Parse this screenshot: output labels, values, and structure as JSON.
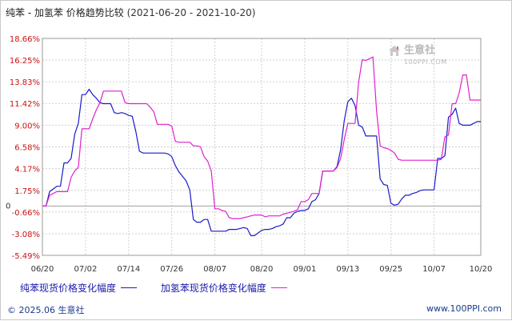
{
  "title": {
    "main": "纯苯 - 加氢苯 价格趋势比较",
    "range": "(2021-06-20 - 2021-10-20)"
  },
  "watermark": {
    "brand": "生意社",
    "site": "100PPI.COM"
  },
  "footer": {
    "copyright": "© 2025.06 生意社",
    "url": "www.100PPI.com"
  },
  "colors": {
    "series1": "#1a1acc",
    "series2": "#e020d0",
    "axis_text": "#cc1111",
    "grid": "#cfcfcf",
    "zero_line": "#a0a0a0"
  },
  "chart_data": {
    "type": "line",
    "title": "纯苯 - 加氢苯 价格趋势比较",
    "xlabel": "",
    "ylabel": "",
    "ylim": [
      -5.49,
      18.66
    ],
    "y_ticks": [
      "18.66%",
      "16.25%",
      "13.83%",
      "11.42%",
      "9.00%",
      "6.58%",
      "4.17%",
      "1.75%",
      "-0.66%",
      "-3.08%",
      "-5.49%"
    ],
    "y_tick_values": [
      18.66,
      16.25,
      13.83,
      11.42,
      9.0,
      6.58,
      4.17,
      1.75,
      -0.66,
      -3.08,
      -5.49
    ],
    "y_zero_label": "0",
    "x_ticks": [
      "06/20",
      "07/02",
      "07/14",
      "07/26",
      "08/07",
      "08/20",
      "09/01",
      "09/13",
      "09/25",
      "10/07",
      "10/20"
    ],
    "x_tick_days": [
      0,
      12,
      24,
      36,
      48,
      61,
      73,
      85,
      97,
      109,
      122
    ],
    "x_range_days": [
      0,
      122
    ],
    "grid": true,
    "legend": "bottom",
    "series": [
      {
        "name": "纯苯现货价格变化幅度",
        "color": "#1a1acc",
        "points": [
          [
            0,
            0
          ],
          [
            1,
            0
          ],
          [
            2,
            1.6
          ],
          [
            3,
            1.9
          ],
          [
            4,
            2.2
          ],
          [
            5,
            2.2
          ],
          [
            6,
            4.8
          ],
          [
            7,
            4.8
          ],
          [
            8,
            5.3
          ],
          [
            9,
            8
          ],
          [
            10,
            9.2
          ],
          [
            11,
            12.4
          ],
          [
            12,
            12.4
          ],
          [
            13,
            13
          ],
          [
            14,
            12.4
          ],
          [
            15,
            12
          ],
          [
            16,
            11.5
          ],
          [
            17,
            11.4
          ],
          [
            18,
            11.4
          ],
          [
            19,
            11.4
          ],
          [
            20,
            10.4
          ],
          [
            21,
            10.3
          ],
          [
            22,
            10.4
          ],
          [
            23,
            10.3
          ],
          [
            24,
            10.1
          ],
          [
            25,
            10
          ],
          [
            26,
            8.3
          ],
          [
            27,
            6.1
          ],
          [
            28,
            5.9
          ],
          [
            29,
            5.9
          ],
          [
            30,
            5.9
          ],
          [
            31,
            5.9
          ],
          [
            32,
            5.9
          ],
          [
            33,
            5.9
          ],
          [
            34,
            5.9
          ],
          [
            35,
            5.8
          ],
          [
            36,
            5.5
          ],
          [
            37,
            4.5
          ],
          [
            38,
            3.8
          ],
          [
            39,
            3.3
          ],
          [
            40,
            2.8
          ],
          [
            41,
            1.8
          ],
          [
            42,
            -1.5
          ],
          [
            43,
            -1.8
          ],
          [
            44,
            -1.8
          ],
          [
            45,
            -1.5
          ],
          [
            46,
            -1.5
          ],
          [
            47,
            -2.8
          ],
          [
            48,
            -2.8
          ],
          [
            49,
            -2.8
          ],
          [
            50,
            -2.8
          ],
          [
            51,
            -2.8
          ],
          [
            52,
            -2.6
          ],
          [
            53,
            -2.6
          ],
          [
            54,
            -2.6
          ],
          [
            55,
            -2.5
          ],
          [
            56,
            -2.4
          ],
          [
            57,
            -2.5
          ],
          [
            58,
            -3.3
          ],
          [
            59,
            -3.3
          ],
          [
            60,
            -3
          ],
          [
            61,
            -2.7
          ],
          [
            62,
            -2.6
          ],
          [
            63,
            -2.6
          ],
          [
            64,
            -2.5
          ],
          [
            65,
            -2.3
          ],
          [
            66,
            -2.2
          ],
          [
            67,
            -2
          ],
          [
            68,
            -1.3
          ],
          [
            69,
            -1.3
          ],
          [
            70,
            -0.8
          ],
          [
            71,
            -0.6
          ],
          [
            72,
            -0.5
          ],
          [
            73,
            -0.5
          ],
          [
            74,
            -0.3
          ],
          [
            75,
            0.5
          ],
          [
            76,
            0.7
          ],
          [
            77,
            1.4
          ],
          [
            78,
            3.9
          ],
          [
            79,
            3.9
          ],
          [
            80,
            3.9
          ],
          [
            81,
            3.9
          ],
          [
            82,
            4.4
          ],
          [
            83,
            6.3
          ],
          [
            84,
            9.5
          ],
          [
            85,
            11.6
          ],
          [
            86,
            12
          ],
          [
            87,
            11.2
          ],
          [
            88,
            9
          ],
          [
            89,
            8.8
          ],
          [
            90,
            7.8
          ],
          [
            91,
            7.8
          ],
          [
            92,
            7.8
          ],
          [
            93,
            7.8
          ],
          [
            94,
            3
          ],
          [
            95,
            2.4
          ],
          [
            96,
            2.3
          ],
          [
            97,
            0.3
          ],
          [
            98,
            0.1
          ],
          [
            99,
            0.2
          ],
          [
            100,
            0.8
          ],
          [
            101,
            1.2
          ],
          [
            102,
            1.2
          ],
          [
            103,
            1.4
          ],
          [
            104,
            1.5
          ],
          [
            105,
            1.7
          ],
          [
            106,
            1.8
          ],
          [
            107,
            1.8
          ],
          [
            108,
            1.8
          ],
          [
            109,
            1.8
          ],
          [
            110,
            5.3
          ],
          [
            111,
            5.3
          ],
          [
            112,
            5.6
          ],
          [
            113,
            9.9
          ],
          [
            114,
            10.2
          ],
          [
            115,
            10.9
          ],
          [
            116,
            9.2
          ],
          [
            117,
            9
          ],
          [
            118,
            9
          ],
          [
            119,
            9
          ],
          [
            120,
            9.2
          ],
          [
            121,
            9.4
          ],
          [
            122,
            9.4
          ]
        ]
      },
      {
        "name": "加氢苯现货价格变化幅度",
        "color": "#e020d0",
        "points": [
          [
            0,
            0
          ],
          [
            1,
            0
          ],
          [
            2,
            1.2
          ],
          [
            3,
            1.4
          ],
          [
            4,
            1.6
          ],
          [
            5,
            1.6
          ],
          [
            6,
            1.6
          ],
          [
            7,
            1.6
          ],
          [
            8,
            3.2
          ],
          [
            9,
            3.9
          ],
          [
            10,
            4.3
          ],
          [
            11,
            8.6
          ],
          [
            12,
            8.6
          ],
          [
            13,
            8.6
          ],
          [
            14,
            9.7
          ],
          [
            15,
            10.7
          ],
          [
            16,
            11.5
          ],
          [
            17,
            12.8
          ],
          [
            18,
            12.8
          ],
          [
            19,
            12.8
          ],
          [
            20,
            12.8
          ],
          [
            21,
            12.8
          ],
          [
            22,
            12.8
          ],
          [
            23,
            11.5
          ],
          [
            24,
            11.4
          ],
          [
            25,
            11.4
          ],
          [
            26,
            11.4
          ],
          [
            27,
            11.4
          ],
          [
            28,
            11.4
          ],
          [
            29,
            11.4
          ],
          [
            30,
            11
          ],
          [
            31,
            10.5
          ],
          [
            32,
            9.1
          ],
          [
            33,
            9.1
          ],
          [
            34,
            9.1
          ],
          [
            35,
            9.1
          ],
          [
            36,
            8.9
          ],
          [
            37,
            7.2
          ],
          [
            38,
            7.1
          ],
          [
            39,
            7.1
          ],
          [
            40,
            7.1
          ],
          [
            41,
            7.1
          ],
          [
            42,
            6.7
          ],
          [
            43,
            6.7
          ],
          [
            44,
            6.6
          ],
          [
            45,
            5.5
          ],
          [
            46,
            5
          ],
          [
            47,
            3.9
          ],
          [
            48,
            -0.3
          ],
          [
            49,
            -0.3
          ],
          [
            50,
            -0.5
          ],
          [
            51,
            -0.6
          ],
          [
            52,
            -1.3
          ],
          [
            53,
            -1.4
          ],
          [
            54,
            -1.4
          ],
          [
            55,
            -1.4
          ],
          [
            56,
            -1.3
          ],
          [
            57,
            -1.2
          ],
          [
            58,
            -1.1
          ],
          [
            59,
            -1
          ],
          [
            60,
            -1
          ],
          [
            61,
            -1
          ],
          [
            62,
            -1.2
          ],
          [
            63,
            -1.1
          ],
          [
            64,
            -1.1
          ],
          [
            65,
            -1.1
          ],
          [
            66,
            -1.1
          ],
          [
            67,
            -0.9
          ],
          [
            68,
            -0.8
          ],
          [
            69,
            -0.7
          ],
          [
            70,
            -0.6
          ],
          [
            71,
            -0.4
          ],
          [
            72,
            0.5
          ],
          [
            73,
            0.5
          ],
          [
            74,
            0.7
          ],
          [
            75,
            1.4
          ],
          [
            76,
            1.4
          ],
          [
            77,
            1.4
          ],
          [
            78,
            3.9
          ],
          [
            79,
            3.9
          ],
          [
            80,
            3.9
          ],
          [
            81,
            3.9
          ],
          [
            82,
            4.3
          ],
          [
            83,
            5.3
          ],
          [
            84,
            7.4
          ],
          [
            85,
            9.2
          ],
          [
            86,
            9.2
          ],
          [
            87,
            9.2
          ],
          [
            88,
            13.8
          ],
          [
            89,
            16.3
          ],
          [
            90,
            16.2
          ],
          [
            91,
            16.4
          ],
          [
            92,
            16.6
          ],
          [
            93,
            10.6
          ],
          [
            94,
            6.7
          ],
          [
            95,
            6.5
          ],
          [
            96,
            6.4
          ],
          [
            97,
            6.2
          ],
          [
            98,
            5.9
          ],
          [
            99,
            5.2
          ],
          [
            100,
            5.1
          ],
          [
            101,
            5.1
          ],
          [
            102,
            5.1
          ],
          [
            103,
            5.1
          ],
          [
            104,
            5.1
          ],
          [
            105,
            5.1
          ],
          [
            106,
            5.1
          ],
          [
            107,
            5.1
          ],
          [
            108,
            5.1
          ],
          [
            109,
            5.1
          ],
          [
            110,
            5.1
          ],
          [
            111,
            5.2
          ],
          [
            112,
            7.7
          ],
          [
            113,
            7.9
          ],
          [
            114,
            11.4
          ],
          [
            115,
            11.4
          ],
          [
            116,
            12.6
          ],
          [
            117,
            14.6
          ],
          [
            118,
            14.6
          ],
          [
            119,
            11.8
          ],
          [
            120,
            11.8
          ],
          [
            121,
            11.8
          ],
          [
            122,
            11.8
          ]
        ]
      }
    ]
  }
}
